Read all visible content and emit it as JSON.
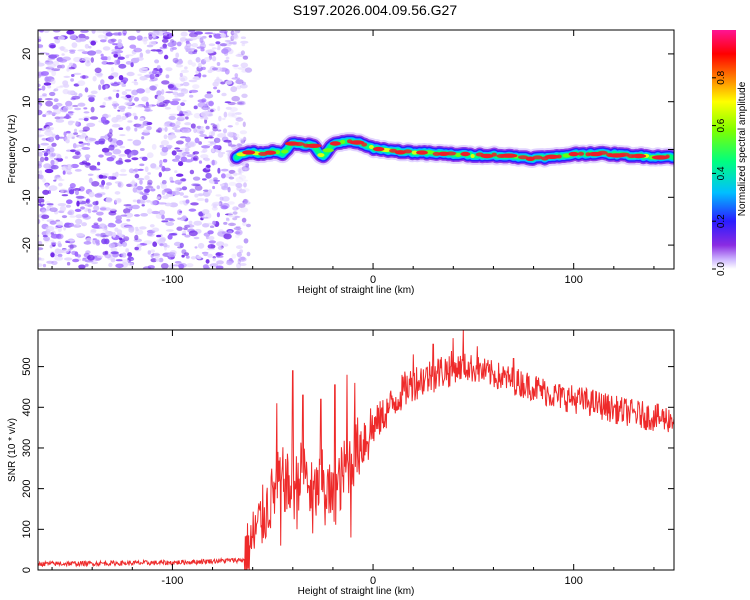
{
  "title": "S197.2026.004.09.56.G27",
  "colors": {
    "snr_line": "#ee2a2a",
    "ridge_core": "#ee1c2a",
    "noise": "#7b3ff2",
    "colorbar_stops": [
      "#ffffff",
      "#cdb6ff",
      "#8a2be2",
      "#2a1cff",
      "#00bfff",
      "#00ff7f",
      "#7fff00",
      "#ffff00",
      "#ff7f00",
      "#ff0000",
      "#ff1493"
    ]
  },
  "chart_data": [
    {
      "type": "heatmap",
      "name": "spectrogram",
      "xlabel": "Height of straight line (km)",
      "ylabel": "Frequency (Hz)",
      "xlim": [
        -167,
        150
      ],
      "ylim": [
        -25,
        25
      ],
      "xticks": [
        -100,
        0,
        100
      ],
      "yticks": [
        -20,
        -10,
        0,
        10,
        20
      ],
      "noise_region_x": [
        -167,
        -64
      ],
      "ridge": {
        "x": [
          -68,
          -60,
          -55,
          -50,
          -45,
          -40,
          -35,
          -30,
          -25,
          -20,
          -15,
          -10,
          -5,
          0,
          10,
          20,
          30,
          40,
          50,
          60,
          70,
          80,
          90,
          100,
          110,
          120,
          130,
          140,
          150
        ],
        "y": [
          -1.5,
          -0.5,
          -1.0,
          -0.3,
          -0.8,
          1.3,
          1.0,
          0.8,
          -1.5,
          1.0,
          1.5,
          1.8,
          1.0,
          0.3,
          -0.3,
          -0.6,
          -0.8,
          -1.0,
          -1.2,
          -1.2,
          -1.5,
          -1.8,
          -1.6,
          -1.0,
          -0.8,
          -1.0,
          -1.3,
          -1.5,
          -1.5
        ]
      },
      "colorbar": {
        "label": "Normalized spectral amplitude",
        "range": [
          0,
          1
        ],
        "ticks": [
          "0.0",
          "0.2",
          "0.4",
          "0.6",
          "0.8"
        ],
        "tick_values": [
          0,
          0.2,
          0.4,
          0.6,
          0.8
        ]
      }
    },
    {
      "type": "line",
      "name": "snr",
      "xlabel": "Height of straight line (km)",
      "ylabel": "SNR (10 * v/v)",
      "xlim": [
        -167,
        150
      ],
      "ylim": [
        0,
        590
      ],
      "xticks": [
        -100,
        0,
        100
      ],
      "yticks": [
        0,
        100,
        200,
        300,
        400,
        500
      ],
      "series": [
        {
          "name": "SNR",
          "x": [
            -167,
            -100,
            -64,
            -58,
            -52,
            -46,
            -40,
            -35,
            -30,
            -25,
            -20,
            -15,
            -10,
            -5,
            0,
            5,
            10,
            15,
            20,
            25,
            30,
            35,
            40,
            45,
            50,
            60,
            70,
            80,
            90,
            100,
            110,
            120,
            130,
            140,
            150
          ],
          "values": [
            15,
            18,
            25,
            100,
            160,
            230,
            190,
            250,
            180,
            220,
            170,
            240,
            280,
            320,
            350,
            380,
            410,
            440,
            460,
            470,
            480,
            490,
            495,
            500,
            495,
            480,
            465,
            450,
            430,
            420,
            410,
            395,
            385,
            375,
            370
          ],
          "peaks": [
            {
              "x": -48,
              "y": 410
            },
            {
              "x": -40,
              "y": 490
            },
            {
              "x": -35,
              "y": 430
            },
            {
              "x": -26,
              "y": 420
            },
            {
              "x": -19,
              "y": 455
            },
            {
              "x": -13,
              "y": 480
            },
            {
              "x": -9,
              "y": 460
            },
            {
              "x": 20,
              "y": 530
            },
            {
              "x": 30,
              "y": 555
            },
            {
              "x": 40,
              "y": 570
            },
            {
              "x": 45,
              "y": 590
            },
            {
              "x": 52,
              "y": 550
            },
            {
              "x": 70,
              "y": 520
            }
          ],
          "troughs": [
            {
              "x": -46,
              "y": 60
            },
            {
              "x": -38,
              "y": 100
            },
            {
              "x": -30,
              "y": 90
            },
            {
              "x": -24,
              "y": 110
            },
            {
              "x": -16,
              "y": 150
            },
            {
              "x": -11,
              "y": 80
            }
          ]
        }
      ]
    }
  ]
}
